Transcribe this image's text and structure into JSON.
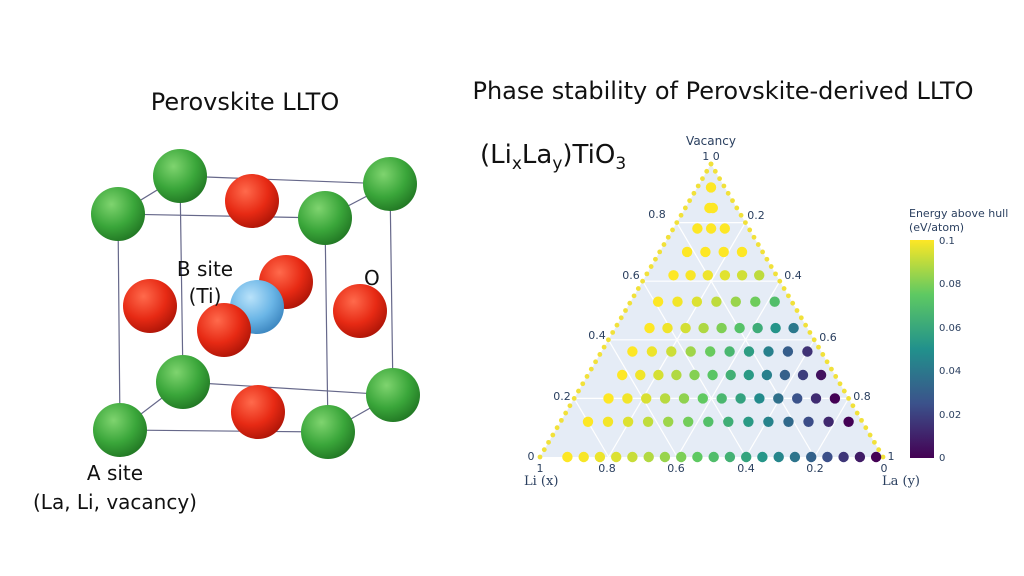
{
  "left": {
    "title": "Perovskite LLTO",
    "b_site_line1": "B site",
    "b_site_line2": "(Ti)",
    "o_label": "O",
    "a_site_line1": "A site",
    "a_site_line2": "(La, Li, vacancy)"
  },
  "right": {
    "title": "Phase stability of Perovskite-derived LLTO",
    "formula": {
      "p1": "(Li",
      "s1": "x",
      "p2": "La",
      "s2": "y",
      "p3": ")TiO",
      "s3": "3"
    }
  },
  "colors": {
    "a_site": "#3a9a3a",
    "b_site": "#6fb8e6",
    "o": "#e02a16",
    "plot_bg": "#e5ecf6",
    "text": "#111111",
    "axis_text": "#2a3f5f"
  },
  "chart_data": {
    "type": "ternary-scatter",
    "axes": {
      "top": "Vacancy",
      "left": "Li (x)",
      "right": "La (y)"
    },
    "corner_values": {
      "top": "1 0",
      "left": "1",
      "left_base": "0",
      "right": "0",
      "right_base": "1"
    },
    "left_edge_ticks": [
      "0.2",
      "0.4",
      "0.6",
      "0.8"
    ],
    "right_edge_ticks": [
      "0.2",
      "0.4",
      "0.6",
      "0.8"
    ],
    "bottom_ticks": [
      "0.8",
      "0.6",
      "0.4",
      "0.2"
    ],
    "colorbar": {
      "title_line1": "Energy above hull",
      "title_line2": "(eV/atom)",
      "range": [
        0,
        0.1
      ],
      "ticks": [
        "0.1",
        "0.08",
        "0.06",
        "0.04",
        "0.02",
        "0"
      ]
    },
    "points_rows": [
      {
        "vacancy": 0.92,
        "li_from": 0.04,
        "li_to": 0.04,
        "count": 1,
        "e_from": 0.1,
        "e_to": 0.1
      },
      {
        "vacancy": 0.85,
        "li_from": 0.08,
        "li_to": 0.07,
        "count": 2,
        "e_from": 0.1,
        "e_to": 0.1
      },
      {
        "vacancy": 0.78,
        "li_from": 0.15,
        "li_to": 0.07,
        "count": 3,
        "e_from": 0.1,
        "e_to": 0.1
      },
      {
        "vacancy": 0.7,
        "li_from": 0.22,
        "li_to": 0.06,
        "count": 4,
        "e_from": 0.1,
        "e_to": 0.1
      },
      {
        "vacancy": 0.62,
        "li_from": 0.3,
        "li_to": 0.05,
        "count": 6,
        "e_from": 0.1,
        "e_to": 0.09
      },
      {
        "vacancy": 0.53,
        "li_from": 0.39,
        "li_to": 0.05,
        "count": 7,
        "e_from": 0.1,
        "e_to": 0.07
      },
      {
        "vacancy": 0.44,
        "li_from": 0.46,
        "li_to": 0.04,
        "count": 9,
        "e_from": 0.1,
        "e_to": 0.04
      },
      {
        "vacancy": 0.36,
        "li_from": 0.55,
        "li_to": 0.04,
        "count": 10,
        "e_from": 0.1,
        "e_to": 0.015
      },
      {
        "vacancy": 0.28,
        "li_from": 0.62,
        "li_to": 0.04,
        "count": 12,
        "e_from": 0.1,
        "e_to": 0.005
      },
      {
        "vacancy": 0.2,
        "li_from": 0.7,
        "li_to": 0.04,
        "count": 13,
        "e_from": 0.1,
        "e_to": 0.0
      },
      {
        "vacancy": 0.12,
        "li_from": 0.8,
        "li_to": 0.04,
        "count": 14,
        "e_from": 0.1,
        "e_to": 0.0
      },
      {
        "vacancy": 0.0,
        "li_from": 0.92,
        "li_to": 0.02,
        "count": 20,
        "e_from": 0.1,
        "e_to": 0.0
      }
    ]
  }
}
